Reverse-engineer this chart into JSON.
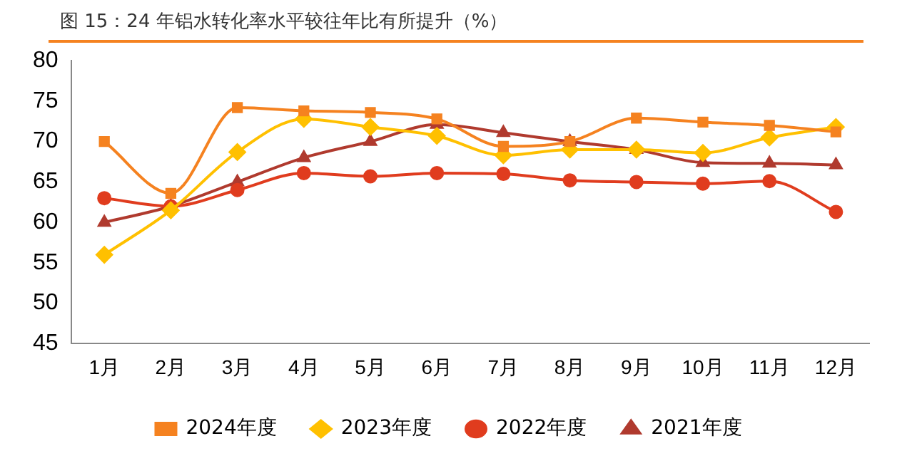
{
  "chart_data": {
    "type": "line",
    "title": "图 15：24 年铝水转化率水平较往年比有所提升（%）",
    "categories": [
      "1月",
      "2月",
      "3月",
      "4月",
      "5月",
      "6月",
      "7月",
      "8月",
      "9月",
      "10月",
      "11月",
      "12月"
    ],
    "ylim": [
      45,
      80
    ],
    "yticks": [
      45,
      50,
      55,
      60,
      65,
      70,
      75,
      80
    ],
    "grid": false,
    "legend": "bottom",
    "series": [
      {
        "name": "2024年度",
        "color": "#f58220",
        "marker": "square",
        "values": [
          70,
          63.6,
          74.2,
          73.8,
          73.6,
          72.8,
          69.4,
          70.0,
          72.9,
          72.4,
          72.0,
          71.2
        ]
      },
      {
        "name": "2023年度",
        "color": "#ffc000",
        "marker": "diamond",
        "values": [
          56,
          61.5,
          68.7,
          72.8,
          71.8,
          70.7,
          68.3,
          69.0,
          69.0,
          68.6,
          70.5,
          71.8
        ]
      },
      {
        "name": "2022年度",
        "color": "#e03c1e",
        "marker": "circle",
        "values": [
          63,
          62,
          64,
          66.1,
          65.7,
          66.1,
          66.0,
          65.2,
          65.0,
          64.8,
          65.1,
          61.3
        ]
      },
      {
        "name": "2021年度",
        "color": "#b03a2e",
        "marker": "triangle",
        "values": [
          60,
          62,
          65,
          68,
          70,
          72.1,
          71.1,
          70.0,
          69.0,
          67.4,
          67.3,
          67.1
        ]
      }
    ]
  }
}
